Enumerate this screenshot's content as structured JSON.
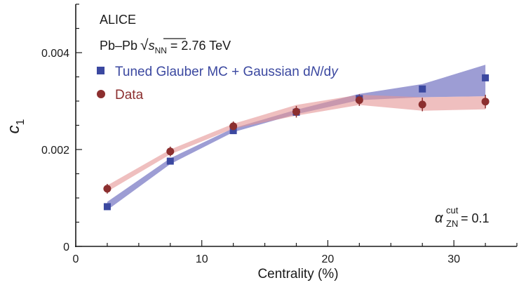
{
  "chart_data": {
    "type": "scatter",
    "xlabel": "Centrality (%)",
    "ylabel_main": "c",
    "ylabel_sub": "1",
    "xlim": [
      0,
      35
    ],
    "ylim": [
      0,
      0.005
    ],
    "xticks": [
      0,
      10,
      20,
      30
    ],
    "yticks": [
      0,
      0.002,
      0.004
    ],
    "ytick_labels": [
      "0",
      "0.002",
      "0.004"
    ],
    "grid": false,
    "annotations": {
      "experiment": "ALICE",
      "system_prefix": "Pb–Pb",
      "sqrt_symbol": "√",
      "s_letter": "s",
      "s_sub": "NN",
      "system_suffix": " = 2.76 TeV",
      "alpha_symbol": "α",
      "alpha_sup": "cut",
      "alpha_sub": "ZN",
      "alpha_value": " = 0.1"
    },
    "legend": {
      "placement": "top-left",
      "entries": {
        "model": {
          "p1": "Tuned Glauber MC + Gaussian d",
          "N": "N",
          "slash": "/d",
          "y": "y"
        },
        "data": {
          "label": "Data"
        }
      }
    },
    "series": [
      {
        "key": "model",
        "marker": "square",
        "color": "#3b48a0",
        "band_color": "#8c8ccc",
        "x": [
          2.5,
          7.5,
          12.5,
          17.5,
          22.5,
          27.5,
          32.5
        ],
        "y": [
          0.00082,
          0.00176,
          0.00239,
          0.00277,
          0.00305,
          0.00325,
          0.00348
        ],
        "band_low": [
          0.00075,
          0.0017,
          0.00236,
          0.00273,
          0.00302,
          0.00308,
          0.0031
        ],
        "band_high": [
          0.00092,
          0.00182,
          0.00244,
          0.00282,
          0.00315,
          0.00335,
          0.00375
        ]
      },
      {
        "key": "data",
        "marker": "circle",
        "color": "#8c2f2f",
        "band_color": "#e59494",
        "x": [
          2.5,
          7.5,
          12.5,
          17.5,
          22.5,
          27.5,
          32.5
        ],
        "y": [
          0.00119,
          0.00196,
          0.00248,
          0.00278,
          0.00302,
          0.00293,
          0.00299
        ],
        "yerr": [
          0.0001,
          0.0001,
          0.0001,
          0.00012,
          0.00012,
          0.00014,
          0.00014
        ],
        "band_low": [
          0.00113,
          0.0019,
          0.00243,
          0.0027,
          0.00292,
          0.0028,
          0.00283
        ],
        "band_high": [
          0.00126,
          0.002,
          0.00253,
          0.00292,
          0.00313,
          0.00308,
          0.0031
        ]
      }
    ]
  }
}
